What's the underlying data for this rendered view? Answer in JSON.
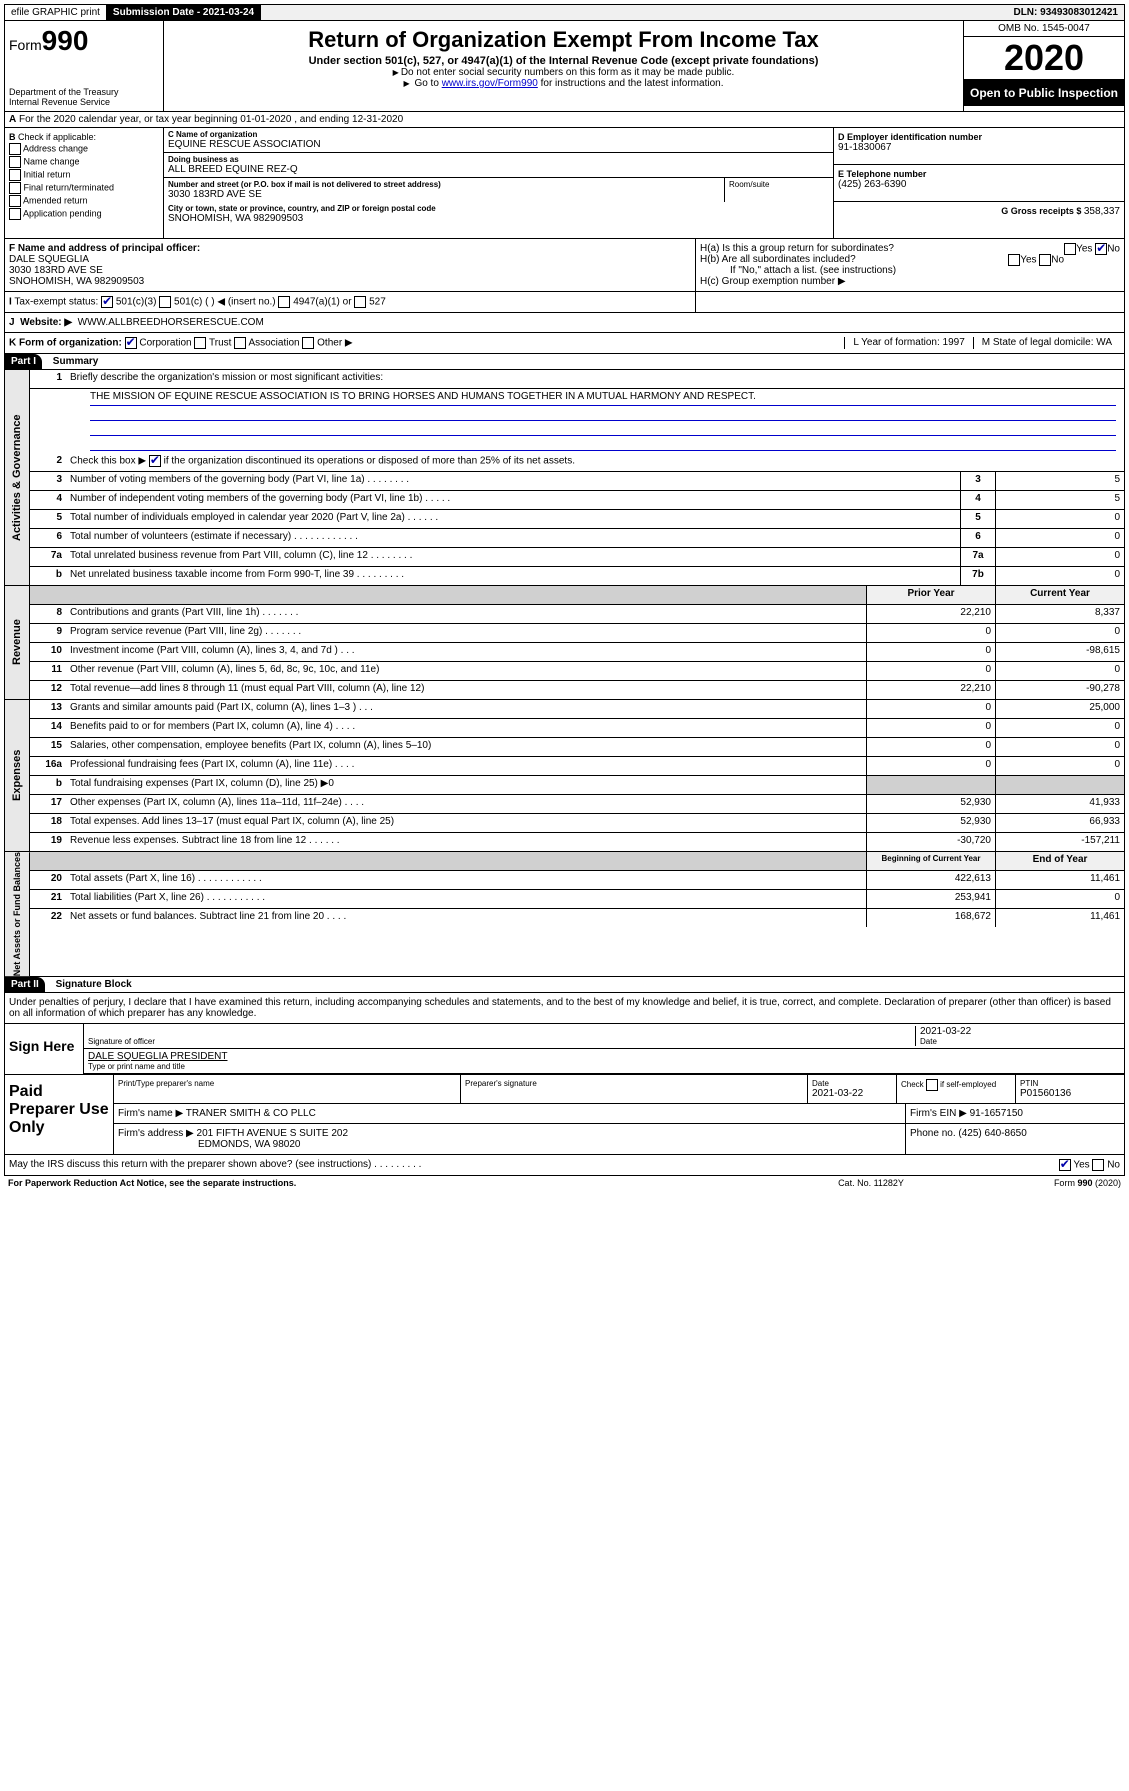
{
  "top": {
    "efile": "efile GRAPHIC print",
    "submission_label": "Submission Date - 2021-03-24",
    "dln": "DLN: 93493083012421"
  },
  "header": {
    "form_prefix": "Form",
    "form_num": "990",
    "dept": "Department of the Treasury\nInternal Revenue Service",
    "title": "Return of Organization Exempt From Income Tax",
    "subtitle": "Under section 501(c), 527, or 4947(a)(1) of the Internal Revenue Code (except private foundations)",
    "note1": "Do not enter social security numbers on this form as it may be made public.",
    "note2_pre": "Go to ",
    "note2_link": "www.irs.gov/Form990",
    "note2_post": " for instructions and the latest information.",
    "omb": "OMB No. 1545-0047",
    "year": "2020",
    "open": "Open to Public Inspection"
  },
  "a": "For the 2020 calendar year, or tax year beginning 01-01-2020      , and ending 12-31-2020",
  "b": {
    "label": "Check if applicable:",
    "opts": [
      "Address change",
      "Name change",
      "Initial return",
      "Final return/terminated",
      "Amended return",
      "Application pending"
    ]
  },
  "c": {
    "name_label": "C Name of organization",
    "name": "EQUINE RESCUE ASSOCIATION",
    "dba_label": "Doing business as",
    "dba": "ALL BREED EQUINE REZ-Q",
    "street_label": "Number and street (or P.O. box if mail is not delivered to street address)",
    "room_label": "Room/suite",
    "street": "3030 183RD AVE SE",
    "city_label": "City or town, state or province, country, and ZIP or foreign postal code",
    "city": "SNOHOMISH, WA  982909503"
  },
  "d": {
    "label": "D Employer identification number",
    "val": "91-1830067"
  },
  "e": {
    "label": "E Telephone number",
    "val": "(425) 263-6390"
  },
  "g": {
    "label": "G Gross receipts $ ",
    "val": "358,337"
  },
  "f": {
    "label": "F  Name and address of principal officer:",
    "name": "DALE SQUEGLIA",
    "addr1": "3030 183RD AVE SE",
    "addr2": "SNOHOMISH, WA  982909503"
  },
  "h": {
    "a": "H(a)  Is this a group return for subordinates?",
    "b": "H(b)  Are all subordinates included?",
    "note": "If \"No,\" attach a list. (see instructions)",
    "c": "H(c)  Group exemption number ▶"
  },
  "i": {
    "label": "Tax-exempt status:",
    "o1": "501(c)(3)",
    "o2": "501(c) (   ) ◀ (insert no.)",
    "o3": "4947(a)(1) or",
    "o4": "527"
  },
  "j": {
    "label": "Website: ▶",
    "val": "WWW.ALLBREEDHORSERESCUE.COM"
  },
  "k": {
    "label": "K Form of organization:",
    "o1": "Corporation",
    "o2": "Trust",
    "o3": "Association",
    "o4": "Other ▶",
    "l": "L Year of formation: 1997",
    "m": "M State of legal domicile: WA"
  },
  "part1": {
    "hdr": "Part I",
    "title": "Summary",
    "side": "Activities & Governance"
  },
  "summary": {
    "l1_label": "Briefly describe the organization's mission or most significant activities:",
    "l1_val": "THE MISSION OF EQUINE RESCUE ASSOCIATION IS TO BRING HORSES AND HUMANS TOGETHER IN A MUTUAL HARMONY AND RESPECT.",
    "l2": "Check this box ▶      if the organization discontinued its operations or disposed of more than 25% of its net assets.",
    "rows_gov": [
      {
        "n": "3",
        "d": "Number of voting members of the governing body (Part VI, line 1a)     .     .     .     .     .     .     .     .",
        "b": "3",
        "v": "5"
      },
      {
        "n": "4",
        "d": "Number of independent voting members of the governing body (Part VI, line 1b)    .     .     .     .     .",
        "b": "4",
        "v": "5"
      },
      {
        "n": "5",
        "d": "Total number of individuals employed in calendar year 2020 (Part V, line 2a)    .     .     .     .     .     .",
        "b": "5",
        "v": "0"
      },
      {
        "n": "6",
        "d": "Total number of volunteers (estimate if necessary)    .     .     .     .     .     .     .     .     .     .     .     .",
        "b": "6",
        "v": "0"
      },
      {
        "n": "7a",
        "d": "Total unrelated business revenue from Part VIII, column (C), line 12    .     .     .     .     .     .     .     .",
        "b": "7a",
        "v": "0"
      },
      {
        "n": "b",
        "d": "Net unrelated business taxable income from Form 990-T, line 39    .     .     .     .     .     .     .     .     .",
        "b": "7b",
        "v": "0"
      }
    ],
    "col_prior": "Prior Year",
    "col_curr": "Current Year",
    "side_rev": "Revenue",
    "rows_rev": [
      {
        "n": "8",
        "d": "Contributions and grants (Part VIII, line 1h)    .     .     .     .     .     .     .",
        "p": "22,210",
        "c": "8,337"
      },
      {
        "n": "9",
        "d": "Program service revenue (Part VIII, line 2g)    .     .     .     .     .     .     .",
        "p": "0",
        "c": "0"
      },
      {
        "n": "10",
        "d": "Investment income (Part VIII, column (A), lines 3, 4, and 7d )    .     .     .",
        "p": "0",
        "c": "-98,615"
      },
      {
        "n": "11",
        "d": "Other revenue (Part VIII, column (A), lines 5, 6d, 8c, 9c, 10c, and 11e)",
        "p": "0",
        "c": "0"
      },
      {
        "n": "12",
        "d": "Total revenue—add lines 8 through 11 (must equal Part VIII, column (A), line 12)",
        "p": "22,210",
        "c": "-90,278"
      }
    ],
    "side_exp": "Expenses",
    "rows_exp": [
      {
        "n": "13",
        "d": "Grants and similar amounts paid (Part IX, column (A), lines 1–3 )    .     .     .",
        "p": "0",
        "c": "25,000"
      },
      {
        "n": "14",
        "d": "Benefits paid to or for members (Part IX, column (A), line 4)    .     .     .     .",
        "p": "0",
        "c": "0"
      },
      {
        "n": "15",
        "d": "Salaries, other compensation, employee benefits (Part IX, column (A), lines 5–10)",
        "p": "0",
        "c": "0"
      },
      {
        "n": "16a",
        "d": "Professional fundraising fees (Part IX, column (A), line 11e)    .     .     .     .",
        "p": "0",
        "c": "0"
      },
      {
        "n": "b",
        "d": "Total fundraising expenses (Part IX, column (D), line 25) ▶0",
        "p": "",
        "c": "",
        "shade": true
      },
      {
        "n": "17",
        "d": "Other expenses (Part IX, column (A), lines 11a–11d, 11f–24e)    .     .     .     .",
        "p": "52,930",
        "c": "41,933"
      },
      {
        "n": "18",
        "d": "Total expenses. Add lines 13–17 (must equal Part IX, column (A), line 25)",
        "p": "52,930",
        "c": "66,933"
      },
      {
        "n": "19",
        "d": "Revenue less expenses. Subtract line 18 from line 12    .     .     .     .     .     .",
        "p": "-30,720",
        "c": "-157,211"
      }
    ],
    "side_net": "Net Assets or Fund Balances",
    "col_beg": "Beginning of Current Year",
    "col_end": "End of Year",
    "rows_net": [
      {
        "n": "20",
        "d": "Total assets (Part X, line 16)    .     .     .     .     .     .     .     .     .     .     .     .",
        "p": "422,613",
        "c": "11,461"
      },
      {
        "n": "21",
        "d": "Total liabilities (Part X, line 26)    .     .     .     .     .     .     .     .     .     .     .",
        "p": "253,941",
        "c": "0"
      },
      {
        "n": "22",
        "d": "Net assets or fund balances. Subtract line 21 from line 20    .     .     .     .",
        "p": "168,672",
        "c": "11,461"
      }
    ]
  },
  "part2": {
    "hdr": "Part II",
    "title": "Signature Block"
  },
  "perjury": "Under penalties of perjury, I declare that I have examined this return, including accompanying schedules and statements, and to the best of my knowledge and belief, it is true, correct, and complete. Declaration of preparer (other than officer) is based on all information of which preparer has any knowledge.",
  "sign": {
    "here": "Sign Here",
    "sig_label": "Signature of officer",
    "date": "2021-03-22",
    "date_label": "Date",
    "name": "DALE SQUEGLIA PRESIDENT",
    "name_label": "Type or print name and title"
  },
  "paid": {
    "label": "Paid Preparer Use Only",
    "h1": "Print/Type preparer's name",
    "h2": "Preparer's signature",
    "h3": "Date",
    "h3v": "2021-03-22",
    "h4": "Check        if self-employed",
    "h5": "PTIN",
    "h5v": "P01560136",
    "firm_label": "Firm's name     ▶",
    "firm": "TRANER SMITH & CO PLLC",
    "ein_label": "Firm's EIN ▶",
    "ein": "91-1657150",
    "addr_label": "Firm's address ▶",
    "addr": "201 FIFTH AVENUE S SUITE 202",
    "addr2": "EDMONDS, WA  98020",
    "phone_label": "Phone no.",
    "phone": "(425) 640-8650"
  },
  "discuss": "May the IRS discuss this return with the preparer shown above? (see instructions)     .     .     .     .     .     .     .     .     .",
  "yes": "Yes",
  "no": "No",
  "footer": {
    "l": "For Paperwork Reduction Act Notice, see the separate instructions.",
    "m": "Cat. No. 11282Y",
    "r": "Form 990 (2020)"
  }
}
